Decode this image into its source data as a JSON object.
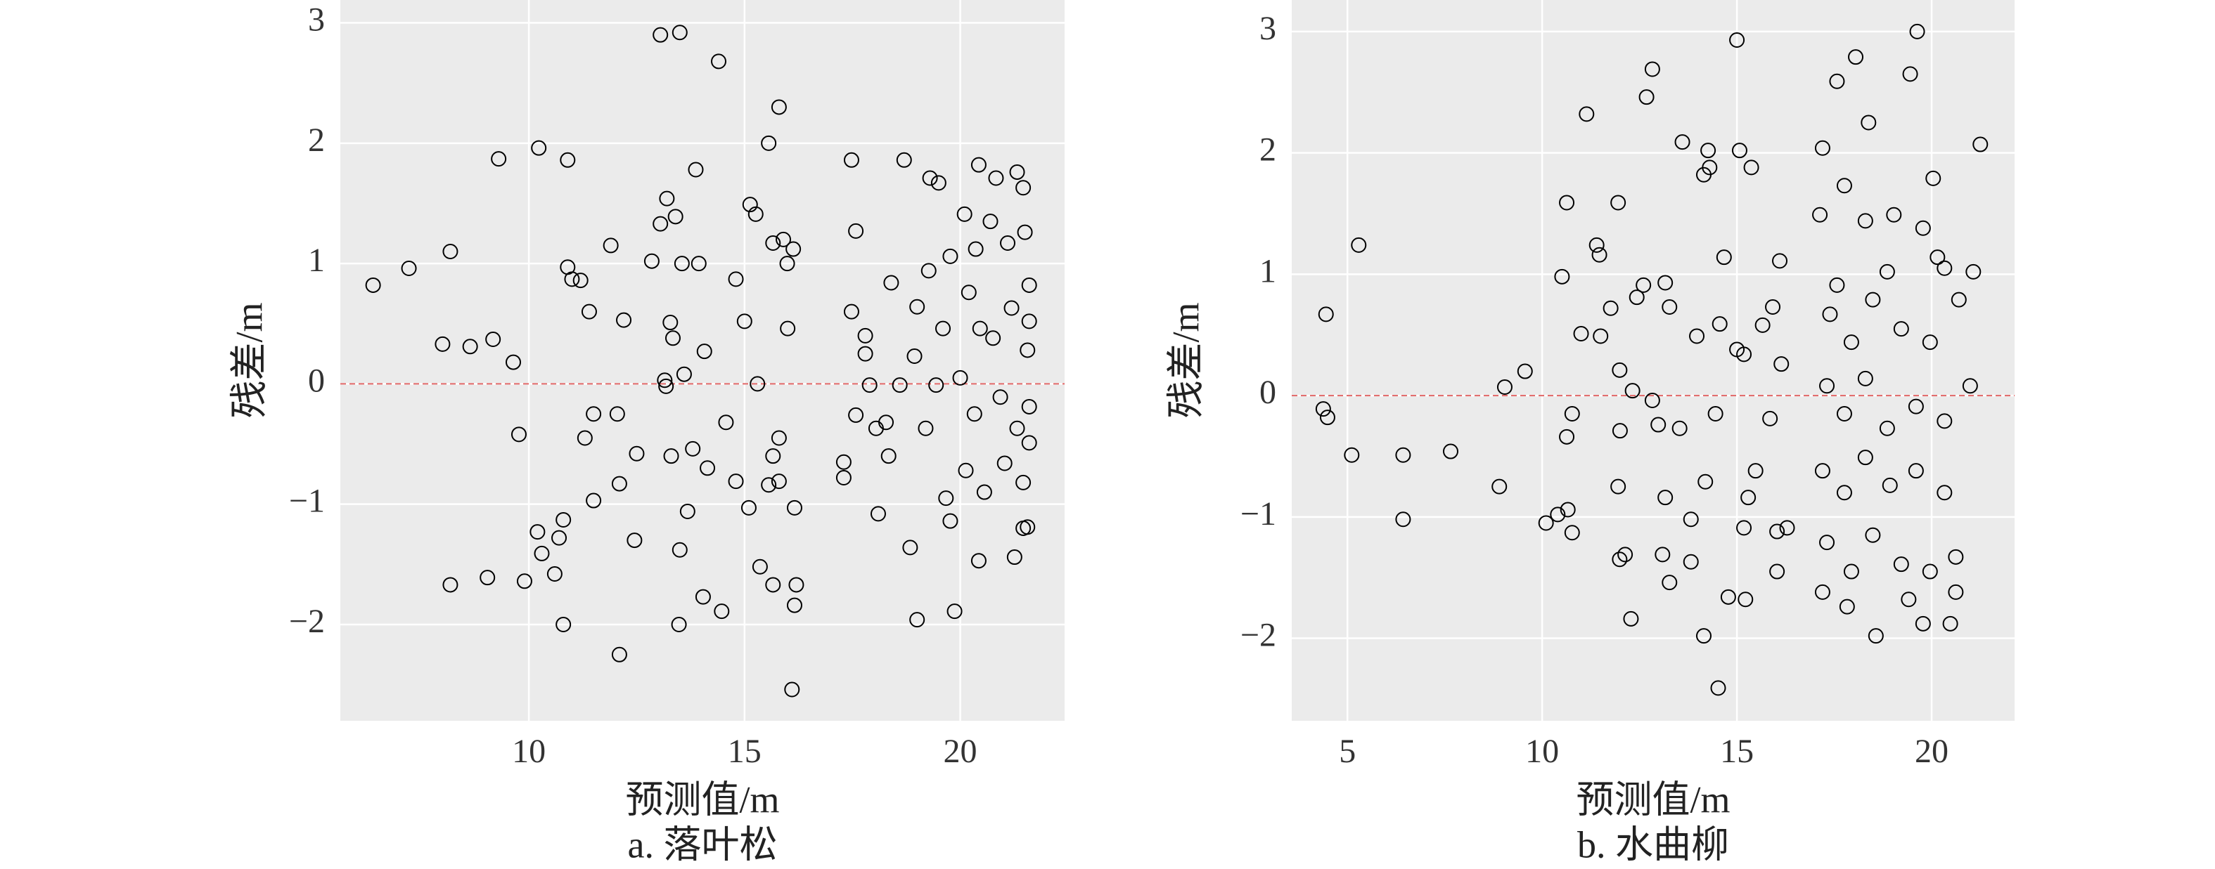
{
  "chart_data": [
    {
      "type": "scatter",
      "caption": "a. 落叶松",
      "xlabel": "预测值/m",
      "ylabel": "残差/m",
      "background": "#ebebeb",
      "grid": true,
      "marker_color": "#000000",
      "hline": 0,
      "hline_color": "#e06666",
      "xlim": [
        5.63,
        22.42
      ],
      "ylim": [
        -2.8,
        3.19
      ],
      "xticks": [
        10,
        15,
        20
      ],
      "yticks": [
        {
          "value": -2,
          "label": "−2"
        },
        {
          "value": -1,
          "label": "−1"
        },
        0,
        1,
        2,
        3
      ],
      "x": [
        6.39,
        7.22,
        8.18,
        8.0,
        8.64,
        9.17,
        9.64,
        9.3,
        10.23,
        10.9,
        10.9,
        11.0,
        11.2,
        11.4,
        11.9,
        12.2,
        9.77,
        8.18,
        9.04,
        9.9,
        10.8,
        12.1,
        10.2,
        10.3,
        10.6,
        10.7,
        10.8,
        11.3,
        11.5,
        11.5,
        12.05,
        12.1,
        12.45,
        12.5,
        13.05,
        13.5,
        14.4,
        12.85,
        13.05,
        13.2,
        13.4,
        13.55,
        13.94,
        13.87,
        13.28,
        13.34,
        13.15,
        13.18,
        13.6,
        13.3,
        13.8,
        14.07,
        14.14,
        13.68,
        13.5,
        13.48,
        14.04,
        14.47,
        14.57,
        14.8,
        14.8,
        15.0,
        15.13,
        15.26,
        15.1,
        15.3,
        15.36,
        15.56,
        15.8,
        15.66,
        15.9,
        15.99,
        16.13,
        16.0,
        15.8,
        15.66,
        15.8,
        15.66,
        16.16,
        16.2,
        16.16,
        16.1,
        15.56,
        17.48,
        17.48,
        17.58,
        17.8,
        17.8,
        17.9,
        17.3,
        17.3,
        17.58,
        18.05,
        18.1,
        18.28,
        18.4,
        18.7,
        19.0,
        19.3,
        19.5,
        18.84,
        19.0,
        19.87,
        19.67,
        19.77,
        20.43,
        20.83,
        21.32,
        21.46,
        20.43,
        21.26,
        21.46,
        21.56,
        20.1,
        20.36,
        20.7,
        21.1,
        21.5,
        20.2,
        20.46,
        20.76,
        21.19,
        21.56,
        20.0,
        20.33,
        20.93,
        21.32,
        21.6,
        20.13,
        20.56,
        21.03,
        21.46,
        19.6,
        19.44,
        19.2,
        18.94,
        18.6,
        18.34,
        19.77,
        19.27,
        21.6,
        21.6,
        21.6
      ],
      "y": [
        0.82,
        0.96,
        1.1,
        0.33,
        0.31,
        0.37,
        0.18,
        1.87,
        1.96,
        1.86,
        0.97,
        0.87,
        0.86,
        0.6,
        1.15,
        0.53,
        -0.42,
        -1.67,
        -1.61,
        -1.64,
        -2.0,
        -2.25,
        -1.23,
        -1.41,
        -1.58,
        -1.28,
        -1.13,
        -0.45,
        -0.25,
        -0.97,
        -0.25,
        -0.83,
        -1.3,
        -0.58,
        2.9,
        2.92,
        2.68,
        1.02,
        1.33,
        1.54,
        1.39,
        1.0,
        1.0,
        1.78,
        0.51,
        0.38,
        0.03,
        -0.02,
        0.08,
        -0.6,
        -0.54,
        0.27,
        -0.7,
        -1.06,
        -1.38,
        -2.0,
        -1.77,
        -1.89,
        -0.32,
        -0.81,
        0.87,
        0.52,
        1.49,
        1.41,
        -1.03,
        0.0,
        -1.52,
        2.0,
        2.3,
        1.17,
        1.2,
        1.0,
        1.12,
        0.46,
        -0.45,
        -0.6,
        -0.81,
        -1.67,
        -1.03,
        -1.67,
        -1.84,
        -2.54,
        -0.84,
        0.6,
        1.86,
        1.27,
        0.4,
        0.25,
        -0.01,
        -0.65,
        -0.78,
        -0.26,
        -0.37,
        -1.08,
        -0.32,
        0.84,
        1.86,
        0.64,
        1.71,
        1.67,
        -1.36,
        -1.96,
        -1.89,
        -0.95,
        -1.14,
        1.82,
        1.71,
        1.76,
        1.63,
        -1.47,
        -1.44,
        -1.2,
        -1.19,
        1.41,
        1.12,
        1.35,
        1.17,
        1.26,
        0.76,
        0.46,
        0.38,
        0.63,
        0.28,
        0.05,
        -0.25,
        -0.11,
        -0.37,
        -0.49,
        -0.72,
        -0.9,
        -0.66,
        -0.82,
        0.46,
        -0.01,
        -0.37,
        0.23,
        -0.01,
        -0.6,
        1.06,
        0.94,
        0.52,
        -0.19,
        0.82
      ]
    },
    {
      "type": "scatter",
      "caption": "b. 水曲柳",
      "xlabel": "预测值/m",
      "ylabel": "残差/m",
      "background": "#ebebeb",
      "grid": true,
      "marker_color": "#000000",
      "hline": 0,
      "hline_color": "#e06666",
      "xlim": [
        3.57,
        22.13
      ],
      "ylim": [
        -2.68,
        3.26
      ],
      "xticks": [
        5,
        10,
        15,
        20
      ],
      "yticks": [
        {
          "value": -2,
          "label": "−2"
        },
        {
          "value": -1,
          "label": "−1"
        },
        0,
        1,
        2,
        3
      ],
      "x": [
        4.45,
        4.38,
        4.49,
        5.11,
        5.29,
        6.43,
        6.43,
        7.65,
        8.9,
        9.04,
        9.56,
        10.1,
        10.4,
        10.66,
        10.77,
        10.63,
        10.77,
        10.51,
        10.63,
        11.0,
        11.14,
        11.4,
        11.47,
        11.5,
        11.76,
        11.95,
        11.99,
        12.13,
        11.99,
        12.0,
        11.95,
        12.28,
        12.32,
        12.43,
        12.68,
        12.83,
        12.6,
        12.83,
        12.98,
        13.09,
        13.16,
        13.27,
        13.16,
        13.27,
        13.53,
        13.6,
        13.82,
        13.82,
        13.97,
        14.15,
        14.26,
        14.3,
        14.15,
        14.19,
        14.45,
        14.56,
        14.52,
        14.78,
        14.67,
        15.0,
        15.07,
        15.0,
        15.18,
        15.18,
        15.22,
        15.29,
        15.37,
        15.48,
        15.66,
        15.85,
        15.92,
        16.03,
        16.14,
        16.29,
        16.1,
        16.03,
        17.2,
        17.57,
        18.05,
        18.38,
        19.63,
        19.45,
        20.04,
        21.25,
        20.33,
        21.07,
        17.13,
        17.76,
        18.3,
        19.03,
        19.78,
        17.39,
        17.94,
        18.49,
        19.22,
        19.96,
        20.7,
        17.31,
        17.76,
        18.3,
        18.86,
        19.6,
        20.33,
        20.99,
        17.2,
        17.76,
        18.3,
        18.93,
        19.6,
        20.33,
        17.31,
        17.94,
        18.49,
        19.22,
        19.96,
        20.62,
        17.2,
        17.83,
        18.57,
        19.41,
        19.78,
        20.48,
        20.62,
        17.57,
        18.86,
        20.15
      ],
      "y": [
        0.67,
        -0.11,
        -0.18,
        -0.49,
        1.24,
        -0.49,
        -1.02,
        -0.46,
        -0.75,
        0.07,
        0.2,
        -1.05,
        -0.98,
        -0.94,
        -1.13,
        -0.34,
        -0.15,
        0.98,
        1.59,
        0.51,
        2.32,
        1.24,
        1.16,
        0.49,
        0.72,
        1.59,
        -1.35,
        -1.31,
        0.21,
        -0.29,
        -0.75,
        -1.84,
        0.04,
        0.81,
        2.46,
        2.69,
        0.91,
        -0.04,
        -0.24,
        -1.31,
        0.93,
        0.73,
        -0.84,
        -1.54,
        -0.27,
        2.09,
        -1.37,
        -1.02,
        0.49,
        1.82,
        2.02,
        1.88,
        -1.98,
        -0.71,
        -0.15,
        0.59,
        -2.41,
        -1.66,
        1.14,
        2.93,
        2.02,
        0.38,
        0.34,
        -1.09,
        -1.68,
        -0.84,
        1.88,
        -0.62,
        0.58,
        -0.19,
        0.73,
        -1.12,
        0.26,
        -1.09,
        1.11,
        -1.45,
        2.04,
        2.59,
        2.79,
        2.25,
        3.0,
        2.65,
        1.79,
        2.07,
        1.05,
        1.02,
        1.49,
        1.73,
        1.44,
        1.49,
        1.38,
        0.67,
        0.44,
        0.79,
        0.55,
        0.44,
        0.79,
        0.08,
        -0.15,
        0.14,
        -0.27,
        -0.09,
        -0.21,
        0.08,
        -0.62,
        -0.8,
        -0.51,
        -0.74,
        -0.62,
        -0.8,
        -1.21,
        -1.45,
        -1.15,
        -1.39,
        -1.45,
        -1.33,
        -1.62,
        -1.74,
        -1.98,
        -1.68,
        -1.88,
        -1.88,
        -1.62,
        0.91,
        1.02,
        1.14
      ]
    }
  ]
}
